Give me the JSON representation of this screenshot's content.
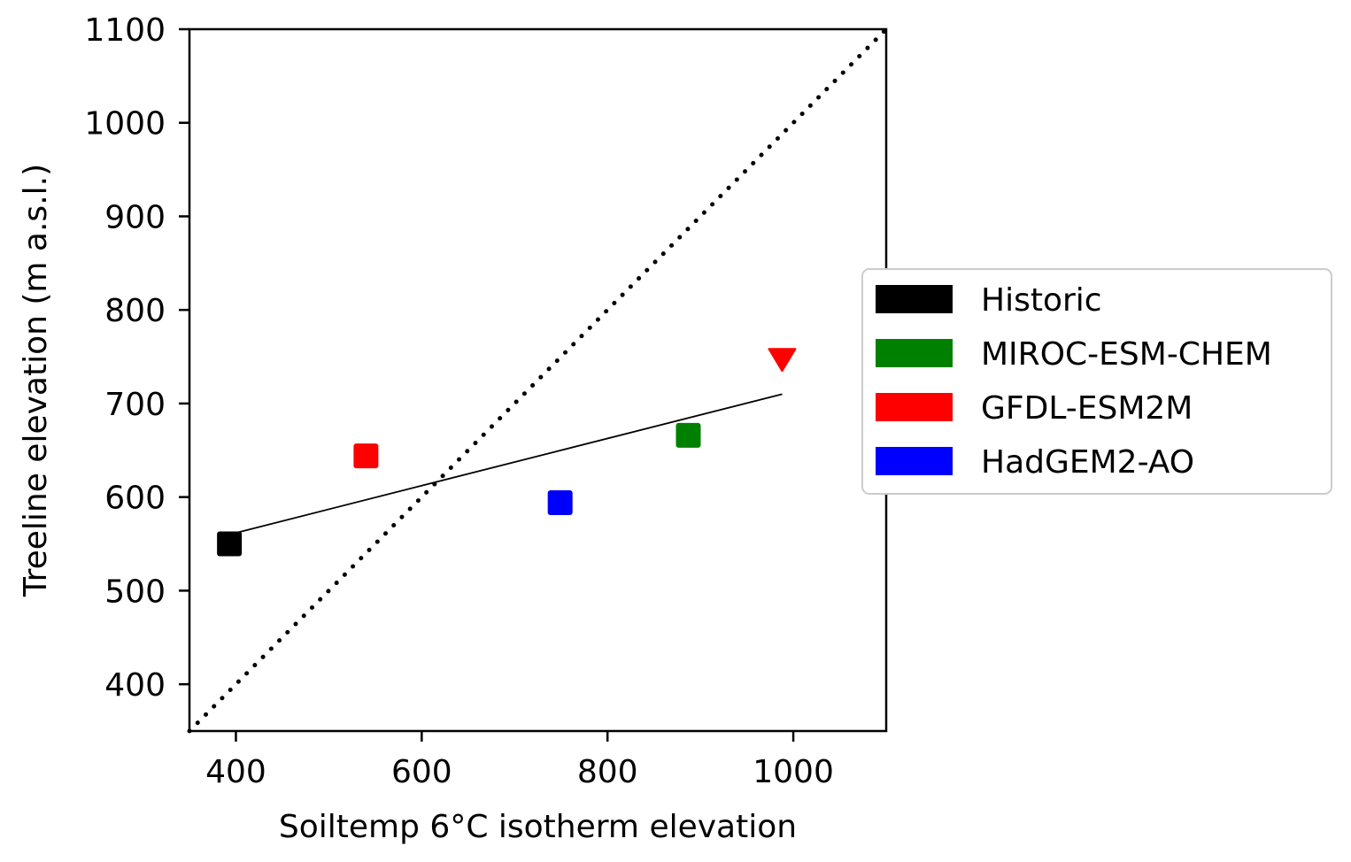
{
  "chart_data": {
    "type": "scatter",
    "xlabel": "Soiltemp 6°C isotherm elevation",
    "ylabel": "Treeline elevation (m a.s.l.)",
    "xlim": [
      350,
      1100
    ],
    "ylim": [
      350,
      1100
    ],
    "xticks": [
      400,
      600,
      800,
      1000
    ],
    "yticks": [
      400,
      500,
      600,
      700,
      800,
      900,
      1000,
      1100
    ],
    "grid": false,
    "legend_position": "right",
    "series": [
      {
        "name": "Historic",
        "color": "#000000",
        "points": [
          {
            "x": 393,
            "y": 550,
            "marker": "square"
          }
        ]
      },
      {
        "name": "MIROC-ESM-CHEM",
        "color": "#008000",
        "points": [
          {
            "x": 887,
            "y": 666,
            "marker": "square"
          }
        ]
      },
      {
        "name": "GFDL-ESM2M",
        "color": "#ff0000",
        "points": [
          {
            "x": 540,
            "y": 644,
            "marker": "square"
          },
          {
            "x": 988,
            "y": 747,
            "marker": "triangle-down"
          }
        ]
      },
      {
        "name": "HadGEM2-AO",
        "color": "#0000ff",
        "points": [
          {
            "x": 749,
            "y": 594,
            "marker": "square"
          }
        ]
      }
    ],
    "fit_line": {
      "x": [
        393,
        988
      ],
      "y": [
        560,
        710
      ],
      "color": "#000000"
    },
    "identity_line": {
      "x": [
        350,
        1100
      ],
      "y": [
        350,
        1100
      ],
      "style": "dotted",
      "color": "#000000"
    }
  }
}
